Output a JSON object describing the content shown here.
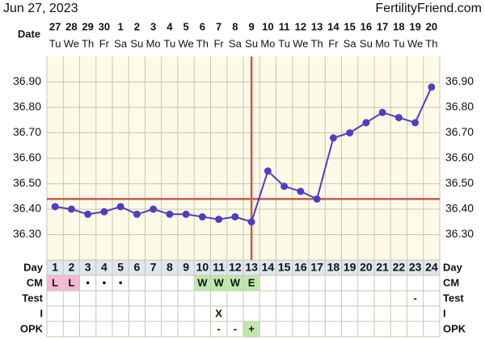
{
  "header": {
    "date": "Jun 27, 2023",
    "site": "FertilityFriend.com"
  },
  "chart_data": {
    "type": "line",
    "date_label": "Date",
    "categories": [
      "27",
      "28",
      "29",
      "30",
      "1",
      "2",
      "3",
      "4",
      "5",
      "6",
      "7",
      "8",
      "9",
      "10",
      "11",
      "12",
      "13",
      "14",
      "15",
      "16",
      "17",
      "18",
      "19",
      "20"
    ],
    "weekdays": [
      "Tu",
      "We",
      "Th",
      "Fr",
      "Sa",
      "Su",
      "Mo",
      "Tu",
      "We",
      "Th",
      "Fr",
      "Sa",
      "Su",
      "Mo",
      "Tu",
      "We",
      "Th",
      "Fr",
      "Sa",
      "Su",
      "Mo",
      "Tu",
      "We",
      "Th"
    ],
    "values": [
      36.41,
      36.4,
      36.38,
      36.39,
      36.41,
      36.38,
      36.4,
      36.38,
      36.38,
      36.37,
      36.36,
      36.37,
      36.35,
      36.55,
      36.49,
      36.47,
      36.44,
      36.68,
      36.7,
      36.74,
      36.78,
      36.76,
      36.74,
      36.88
    ],
    "color": "#4d3fc0",
    "coverline": 36.44,
    "ovulation_cycle_day": 13,
    "marker_color": "#c9584e",
    "ylim": [
      36.2,
      37.0
    ],
    "yticks": [
      {
        "value": 36.3,
        "label": "36.30"
      },
      {
        "value": 36.4,
        "label": "36.40"
      },
      {
        "value": 36.5,
        "label": "36.50"
      },
      {
        "value": 36.6,
        "label": "36.60"
      },
      {
        "value": 36.7,
        "label": "36.70"
      },
      {
        "value": 36.8,
        "label": "36.80"
      },
      {
        "value": 36.9,
        "label": "36.90"
      }
    ],
    "grid": true
  },
  "table": {
    "day_label": "Day",
    "days": [
      1,
      2,
      3,
      4,
      5,
      6,
      7,
      8,
      9,
      10,
      11,
      12,
      13,
      14,
      15,
      16,
      17,
      18,
      19,
      20,
      21,
      22,
      23,
      24
    ],
    "rows": [
      {
        "label": "CM",
        "cells": [
          "L",
          "L",
          "•",
          "•",
          "•",
          null,
          null,
          null,
          null,
          "W",
          "W",
          "W",
          "E",
          null,
          null,
          null,
          null,
          null,
          null,
          null,
          null,
          null,
          null,
          null
        ],
        "colors": [
          "#f2b9d3",
          "#f2b9d3",
          null,
          null,
          null,
          null,
          null,
          null,
          null,
          "#bfe8ad",
          "#bfe8ad",
          "#bfe8ad",
          "#bfe8ad",
          null,
          null,
          null,
          null,
          null,
          null,
          null,
          null,
          null,
          null,
          null
        ]
      },
      {
        "label": "Test",
        "cells": [
          null,
          null,
          null,
          null,
          null,
          null,
          null,
          null,
          null,
          null,
          null,
          null,
          null,
          null,
          null,
          null,
          null,
          null,
          null,
          null,
          null,
          null,
          "-",
          null
        ],
        "colors": [
          null,
          null,
          null,
          null,
          null,
          null,
          null,
          null,
          null,
          null,
          null,
          null,
          null,
          null,
          null,
          null,
          null,
          null,
          null,
          null,
          null,
          null,
          null,
          null
        ]
      },
      {
        "label": "I",
        "cells": [
          null,
          null,
          null,
          null,
          null,
          null,
          null,
          null,
          null,
          null,
          "X",
          null,
          null,
          null,
          null,
          null,
          null,
          null,
          null,
          null,
          null,
          null,
          null,
          null
        ],
        "colors": [
          null,
          null,
          null,
          null,
          null,
          null,
          null,
          null,
          null,
          null,
          null,
          null,
          null,
          null,
          null,
          null,
          null,
          null,
          null,
          null,
          null,
          null,
          null,
          null
        ]
      },
      {
        "label": "OPK",
        "cells": [
          null,
          null,
          null,
          null,
          null,
          null,
          null,
          null,
          null,
          null,
          "-",
          "-",
          "+",
          null,
          null,
          null,
          null,
          null,
          null,
          null,
          null,
          null,
          null,
          null
        ],
        "colors": [
          null,
          null,
          null,
          null,
          null,
          null,
          null,
          null,
          null,
          null,
          null,
          null,
          "#bfe8ad",
          null,
          null,
          null,
          null,
          null,
          null,
          null,
          null,
          null,
          null,
          null
        ]
      }
    ]
  }
}
